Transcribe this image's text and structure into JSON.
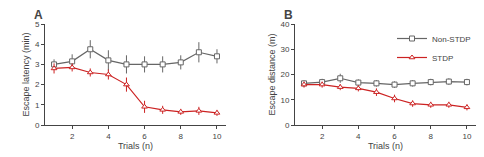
{
  "chart_data": [
    {
      "type": "line",
      "title": "A",
      "x": [
        1,
        2,
        3,
        4,
        5,
        6,
        7,
        8,
        9,
        10
      ],
      "x_label": "Trials (n)",
      "y_label": "Escape latency (min)",
      "series": [
        {
          "color": "#666666",
          "marker": "square",
          "values": [
            3.0,
            3.15,
            3.75,
            3.2,
            3.0,
            3.0,
            3.0,
            3.1,
            3.6,
            3.4
          ],
          "error": [
            0.25,
            0.35,
            0.45,
            0.5,
            0.45,
            0.4,
            0.4,
            0.35,
            0.5,
            0.35
          ]
        },
        {
          "color": "#cc2222",
          "marker": "triangle",
          "values": [
            2.8,
            2.85,
            2.6,
            2.5,
            2.0,
            0.9,
            0.75,
            0.65,
            0.7,
            0.6
          ],
          "error": [
            0.25,
            0.2,
            0.2,
            0.25,
            0.35,
            0.3,
            0.2,
            0.15,
            0.2,
            0.15
          ]
        }
      ],
      "xlim": [
        0.5,
        10.5
      ],
      "xticks": [
        2,
        4,
        6,
        8,
        10
      ],
      "ylim": [
        0,
        5
      ],
      "yticks": [
        0,
        1,
        2,
        3,
        4,
        5
      ],
      "grid": false
    },
    {
      "type": "line",
      "title": "B",
      "x": [
        1,
        2,
        3,
        4,
        5,
        6,
        7,
        8,
        9,
        10
      ],
      "x_label": "Trials (n)",
      "y_label": "Escape distance (m)",
      "series": [
        {
          "name": "Non-STDP",
          "color": "#666666",
          "marker": "square",
          "values": [
            16.5,
            17.0,
            18.5,
            16.8,
            16.5,
            16.0,
            16.5,
            17.0,
            17.2,
            17.0
          ],
          "error": [
            1.2,
            1.3,
            1.8,
            1.3,
            1.3,
            1.3,
            1.3,
            1.3,
            1.3,
            1.3
          ]
        },
        {
          "name": "STDP",
          "color": "#cc2222",
          "marker": "triangle",
          "values": [
            16.0,
            16.0,
            15.0,
            14.5,
            13.0,
            10.5,
            8.5,
            8.0,
            8.0,
            7.0
          ],
          "error": [
            1.2,
            1.2,
            1.2,
            1.2,
            1.5,
            1.5,
            1.3,
            1.2,
            1.2,
            1.2
          ]
        }
      ],
      "xlim": [
        0.5,
        10.5
      ],
      "xticks": [
        2,
        4,
        6,
        8,
        10
      ],
      "ylim": [
        0,
        40
      ],
      "yticks": [
        0,
        10,
        20,
        30,
        40
      ],
      "grid": false,
      "legend": "upper right"
    }
  ]
}
